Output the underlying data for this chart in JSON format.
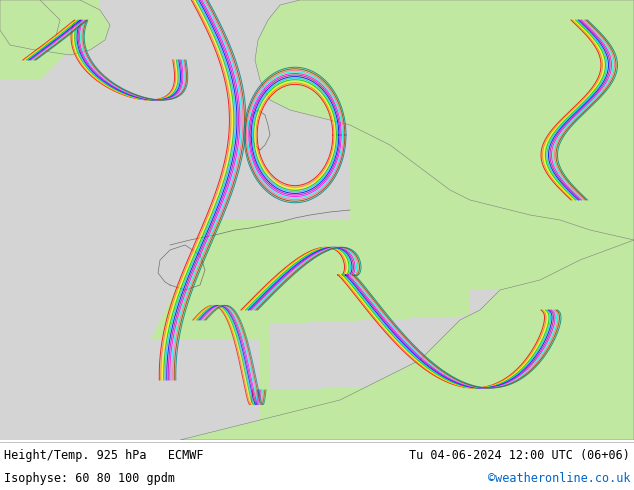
{
  "title_left_line1": "Height/Temp. 925 hPa   ECMWF",
  "title_left_line2": "Isophyse: 60 80 100 gpdm",
  "title_right_line1": "Tu 04-06-2024 12:00 UTC (06+06)",
  "title_right_line2": "©weatheronline.co.uk",
  "title_right_line2_color": "#0066cc",
  "text_color": "#000000",
  "bottom_bar_color": "#e8e8e8",
  "font_size_main": 8.5,
  "font_size_copy": 8.5,
  "ocean_color": "#d8d8d8",
  "land_green_color": "#c0e8a0",
  "land_gray_color": "#c8c8c8",
  "contour_colors": [
    "#ff0000",
    "#ff8800",
    "#ffff00",
    "#00cc00",
    "#00ccff",
    "#0000ff",
    "#cc00cc",
    "#ff00ff",
    "#00ffff",
    "#ff6699",
    "#884400",
    "#008888"
  ],
  "fig_width": 6.34,
  "fig_height": 4.9,
  "dpi": 100
}
